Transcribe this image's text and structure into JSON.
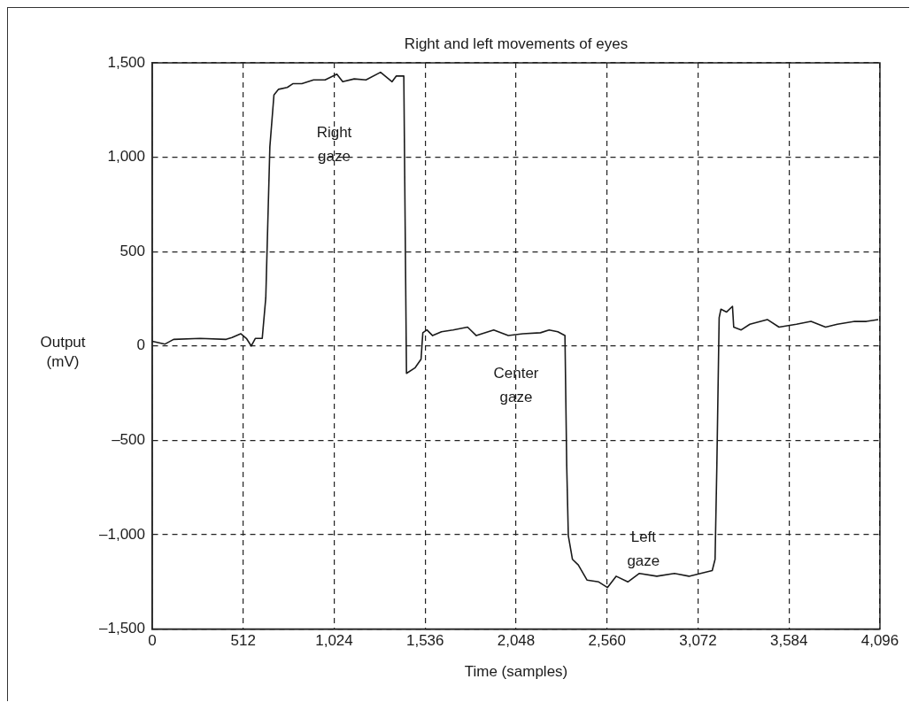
{
  "chart_data": {
    "type": "line",
    "title": "Right and left movements of eyes",
    "xlabel": "Time (samples)",
    "ylabel": "Output (mV)",
    "x": [
      0,
      72,
      120,
      269,
      416,
      449,
      498,
      530,
      557,
      580,
      619,
      639,
      662,
      685,
      711,
      760,
      793,
      842,
      908,
      973,
      1039,
      1072,
      1137,
      1203,
      1285,
      1350,
      1373,
      1416,
      1431,
      1480,
      1513,
      1523,
      1546,
      1578,
      1628,
      1693,
      1775,
      1824,
      1922,
      2004,
      2086,
      2185,
      2234,
      2283,
      2323,
      2333,
      2342,
      2365,
      2398,
      2447,
      2513,
      2562,
      2611,
      2677,
      2742,
      2840,
      2939,
      3021,
      3086,
      3152,
      3168,
      3178,
      3191,
      3201,
      3233,
      3266,
      3273,
      3315,
      3364,
      3462,
      3528,
      3626,
      3708,
      3790,
      3856,
      3954,
      4020,
      4086
    ],
    "series": [
      {
        "color": "#1a1a1a",
        "values": [
          25,
          10,
          35,
          40,
          35,
          45,
          65,
          40,
          0,
          40,
          40,
          255,
          1055,
          1330,
          1360,
          1370,
          1390,
          1390,
          1410,
          1410,
          1440,
          1400,
          1415,
          1410,
          1450,
          1400,
          1430,
          1430,
          -145,
          -115,
          -70,
          70,
          85,
          55,
          75,
          85,
          100,
          55,
          85,
          55,
          65,
          70,
          85,
          75,
          55,
          -635,
          -1005,
          -1130,
          -1160,
          -1240,
          -1250,
          -1280,
          -1220,
          -1250,
          -1205,
          -1220,
          -1205,
          -1220,
          -1205,
          -1190,
          -1130,
          -635,
          150,
          195,
          180,
          210,
          100,
          85,
          115,
          140,
          100,
          115,
          130,
          100,
          115,
          130,
          130,
          140
        ]
      }
    ],
    "xlim": [
      0,
      4096
    ],
    "xticks": [
      0,
      512,
      {
        "value": 1024,
        "label": "1,024"
      },
      {
        "value": 1536,
        "label": "1,536"
      },
      {
        "value": 2048,
        "label": "2,048"
      },
      {
        "value": 2560,
        "label": "2,560"
      },
      {
        "value": 3072,
        "label": "3,072"
      },
      {
        "value": 3584,
        "label": "3,584"
      },
      {
        "value": 4096,
        "label": "4,096"
      }
    ],
    "ylim": [
      -1500,
      1500
    ],
    "yticks": [
      {
        "value": -1500,
        "label": "–1,500"
      },
      {
        "value": -1000,
        "label": "–1,000"
      },
      {
        "value": -500,
        "label": "–500"
      },
      0,
      500,
      {
        "value": 1000,
        "label": "1,000"
      },
      {
        "value": 1500,
        "label": "1,500"
      }
    ],
    "grid": true,
    "line_style": "solid",
    "marker": "none",
    "legend": false,
    "annotations": [
      "Right gaze",
      "Center gaze",
      "Left gaze"
    ]
  }
}
